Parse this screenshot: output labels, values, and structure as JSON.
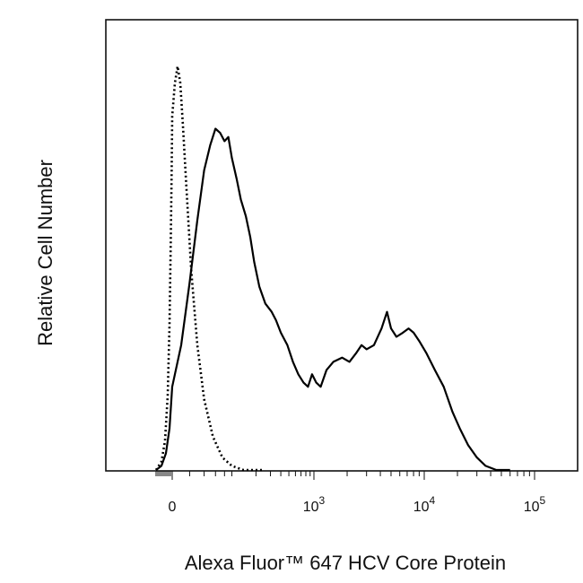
{
  "chart_data": {
    "type": "line",
    "title": "",
    "xlabel": "Alexa Fluor™ 647 HCV Core Protein",
    "ylabel": "Relative Cell Number",
    "x_scale": "biexponential",
    "x_ticks": [
      {
        "value": 0,
        "base": "0",
        "exp": ""
      },
      {
        "value": 1000,
        "base": "10",
        "exp": "3"
      },
      {
        "value": 10000,
        "base": "10",
        "exp": "4"
      },
      {
        "value": 100000,
        "base": "10",
        "exp": "5"
      }
    ],
    "grid": false,
    "legend": "none",
    "series": [
      {
        "style": "solid",
        "color": "#000000",
        "points": [
          [
            -90,
            0.0
          ],
          [
            -60,
            0.01
          ],
          [
            -35,
            0.04
          ],
          [
            -15,
            0.1
          ],
          [
            0,
            0.2
          ],
          [
            10,
            0.3
          ],
          [
            20,
            0.45
          ],
          [
            30,
            0.6
          ],
          [
            40,
            0.72
          ],
          [
            50,
            0.78
          ],
          [
            60,
            0.82
          ],
          [
            70,
            0.81
          ],
          [
            80,
            0.79
          ],
          [
            90,
            0.8
          ],
          [
            100,
            0.75
          ],
          [
            115,
            0.7
          ],
          [
            130,
            0.65
          ],
          [
            150,
            0.61
          ],
          [
            170,
            0.56
          ],
          [
            190,
            0.5
          ],
          [
            220,
            0.44
          ],
          [
            260,
            0.4
          ],
          [
            310,
            0.38
          ],
          [
            350,
            0.36
          ],
          [
            400,
            0.33
          ],
          [
            480,
            0.3
          ],
          [
            560,
            0.26
          ],
          [
            650,
            0.23
          ],
          [
            750,
            0.21
          ],
          [
            850,
            0.2
          ],
          [
            950,
            0.23
          ],
          [
            1050,
            0.21
          ],
          [
            1150,
            0.2
          ],
          [
            1300,
            0.24
          ],
          [
            1500,
            0.26
          ],
          [
            1800,
            0.27
          ],
          [
            2100,
            0.26
          ],
          [
            2400,
            0.28
          ],
          [
            2700,
            0.3
          ],
          [
            3000,
            0.29
          ],
          [
            3500,
            0.3
          ],
          [
            4100,
            0.34
          ],
          [
            4600,
            0.38
          ],
          [
            5000,
            0.34
          ],
          [
            5600,
            0.32
          ],
          [
            6400,
            0.33
          ],
          [
            7200,
            0.34
          ],
          [
            8000,
            0.33
          ],
          [
            9000,
            0.31
          ],
          [
            10500,
            0.28
          ],
          [
            12500,
            0.24
          ],
          [
            15000,
            0.2
          ],
          [
            18000,
            0.14
          ],
          [
            21000,
            0.1
          ],
          [
            25000,
            0.06
          ],
          [
            30000,
            0.03
          ],
          [
            36000,
            0.01
          ],
          [
            45000,
            0.0
          ],
          [
            60000,
            0.0
          ]
        ]
      },
      {
        "style": "dotted",
        "color": "#000000",
        "points": [
          [
            -90,
            0.0
          ],
          [
            -60,
            0.02
          ],
          [
            -40,
            0.07
          ],
          [
            -25,
            0.18
          ],
          [
            -15,
            0.35
          ],
          [
            -8,
            0.55
          ],
          [
            -3,
            0.72
          ],
          [
            0,
            0.85
          ],
          [
            3,
            0.93
          ],
          [
            6,
            0.97
          ],
          [
            9,
            0.93
          ],
          [
            12,
            0.83
          ],
          [
            16,
            0.68
          ],
          [
            22,
            0.48
          ],
          [
            30,
            0.3
          ],
          [
            40,
            0.17
          ],
          [
            55,
            0.08
          ],
          [
            75,
            0.03
          ],
          [
            100,
            0.01
          ],
          [
            140,
            0.0
          ],
          [
            250,
            0.0
          ]
        ]
      }
    ]
  }
}
